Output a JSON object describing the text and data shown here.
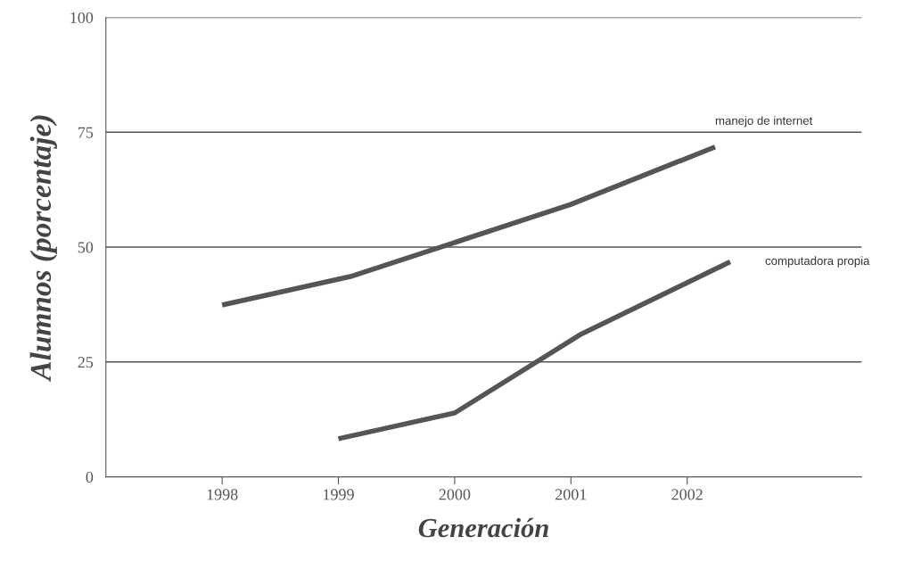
{
  "chart_data": {
    "type": "line",
    "xlabel": "Generación",
    "ylabel": "Alumnos (porcentaje)",
    "xlim": [
      1997,
      2003.5
    ],
    "xticks": [
      1998,
      1999,
      2000,
      2001,
      2002
    ],
    "ylim": [
      0,
      100
    ],
    "yticks": [
      0,
      25,
      50,
      75,
      100
    ],
    "grid": "y",
    "legend": false,
    "marker": "none",
    "line_style": "solid",
    "series": [
      {
        "name": "manejo de internet",
        "color": "#555555",
        "x": [
          1998,
          1999.12,
          2001,
          2002.24
        ],
        "values": [
          37.4,
          43.7,
          59.3,
          71.8
        ]
      },
      {
        "name": "computadora propia",
        "color": "#555555",
        "x": [
          1999,
          2000,
          2001.09,
          2002.37
        ],
        "values": [
          8.3,
          13.9,
          31.1,
          46.8
        ]
      }
    ]
  }
}
